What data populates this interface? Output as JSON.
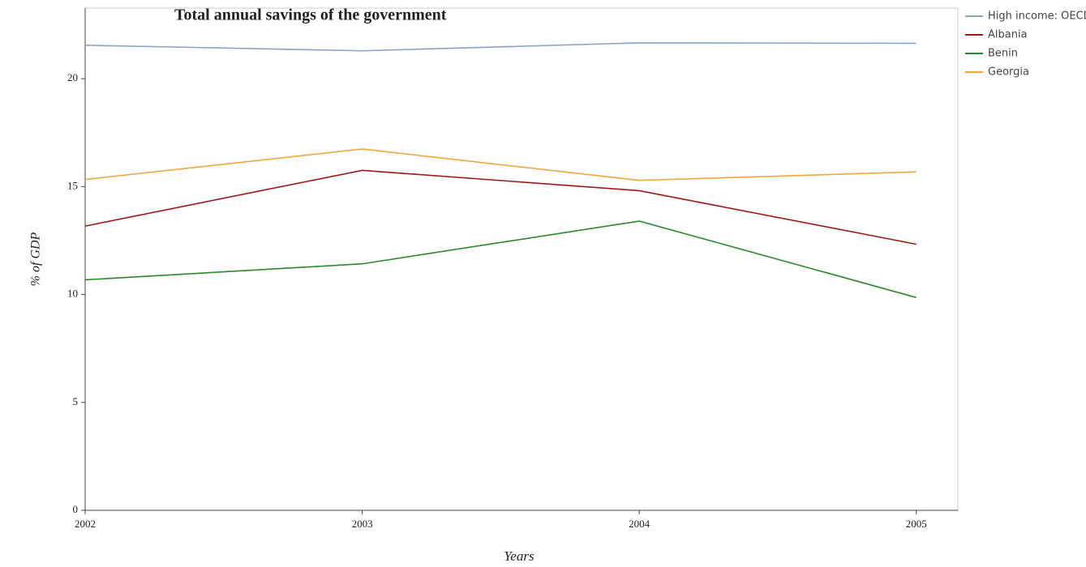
{
  "chart_data": {
    "type": "line",
    "title": "Total annual savings of the government",
    "xlabel": "Years",
    "ylabel": "% of GDP",
    "x": [
      2002,
      2003,
      2004,
      2005
    ],
    "xlim": [
      2002,
      2005.15
    ],
    "xticks": [
      2002,
      2003,
      2004,
      2005
    ],
    "ylim": [
      0,
      23.27
    ],
    "yticks": [
      0,
      5,
      10,
      15,
      20
    ],
    "legend": "upper right",
    "series": [
      {
        "name": "High income: OECD",
        "color": "#8aa4c8",
        "values": [
          21.55,
          21.29,
          21.66,
          21.64
        ]
      },
      {
        "name": "Albania",
        "color": "#a01818",
        "values": [
          13.17,
          15.75,
          14.81,
          12.33
        ]
      },
      {
        "name": "Benin",
        "color": "#2a8a2a",
        "values": [
          10.68,
          11.42,
          13.4,
          9.86
        ]
      },
      {
        "name": "Georgia",
        "color": "#f4a43c",
        "values": [
          15.33,
          16.74,
          15.29,
          15.68
        ]
      }
    ]
  }
}
